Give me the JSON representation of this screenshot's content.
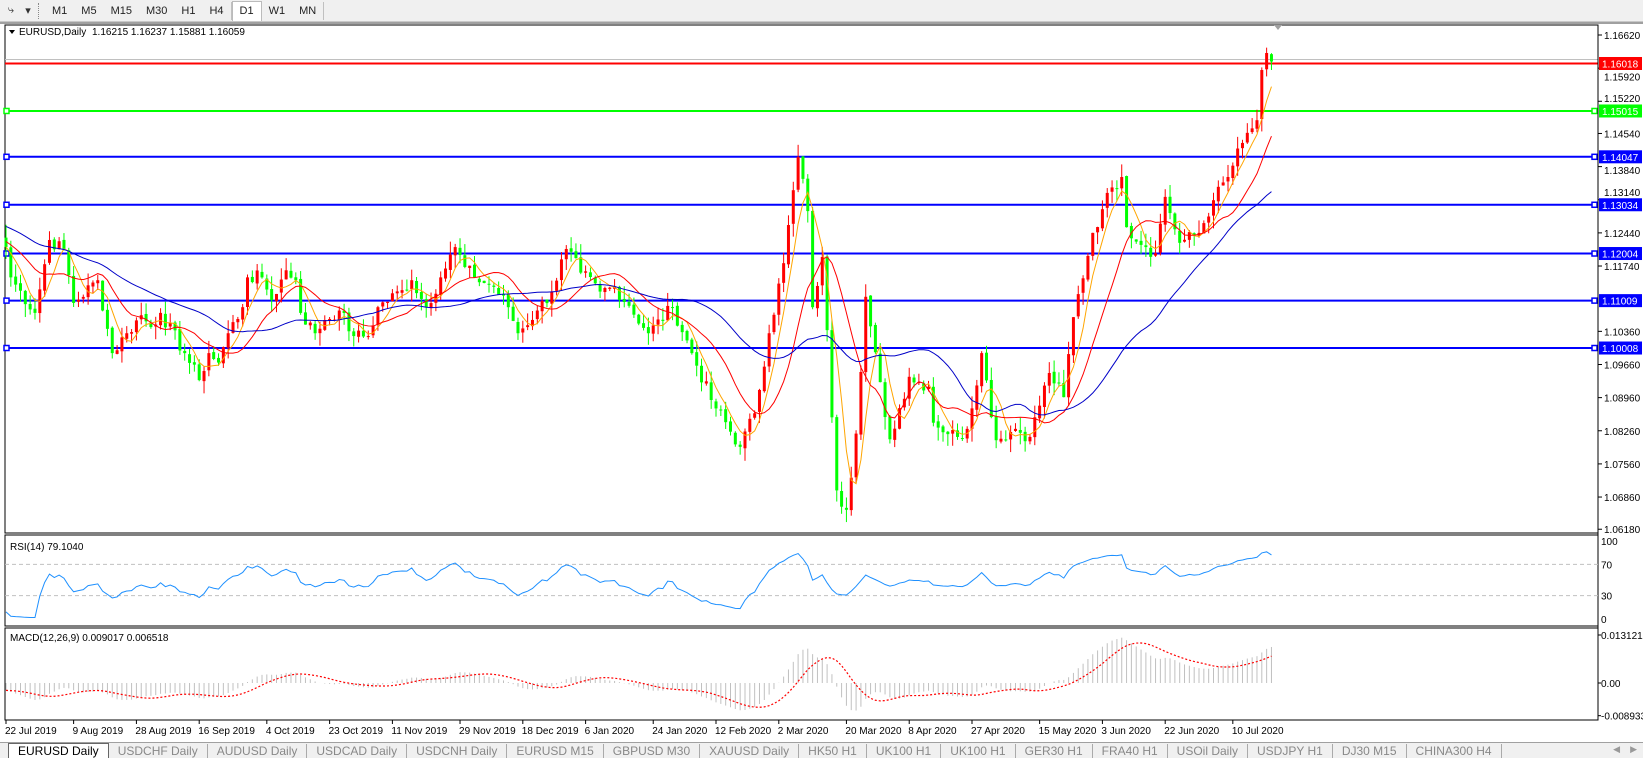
{
  "toolbar": {
    "timeframes": [
      "M1",
      "M5",
      "M15",
      "M30",
      "H1",
      "H4",
      "D1",
      "W1",
      "MN"
    ],
    "active_timeframe": "D1"
  },
  "chart": {
    "symbol_title": "EURUSD,Daily",
    "ohlc": "1.16215 1.16237 1.15881 1.16059",
    "last_bar": {
      "open": 1.16215,
      "high": 1.16237,
      "low": 1.15881,
      "close": 1.16059
    },
    "price_ticks": [
      "1.16620",
      "1.15920",
      "1.15220",
      "1.14540",
      "1.13840",
      "1.13140",
      "1.12440",
      "1.11740",
      "1.10360",
      "1.09660",
      "1.08960",
      "1.08260",
      "1.07560",
      "1.06860",
      "1.06180"
    ],
    "horizontal_lines": [
      {
        "value": "1.16018",
        "color": "#ff0000"
      },
      {
        "value": "1.15015",
        "color": "#00ff00"
      },
      {
        "value": "1.14047",
        "color": "#0000ff"
      },
      {
        "value": "1.13034",
        "color": "#0000ff"
      },
      {
        "value": "1.12004",
        "color": "#0000ff"
      },
      {
        "value": "1.11009",
        "color": "#0000ff"
      },
      {
        "value": "1.10008",
        "color": "#0000ff"
      }
    ],
    "candle_colors": {
      "bull": "#ff0000",
      "bear": "#00ff00"
    },
    "ma_colors": [
      "#ffa500",
      "#ff0000",
      "#0000c8"
    ],
    "close_path": [
      [
        "2019-07-22",
        1.1214
      ],
      [
        "2019-07-23",
        1.115
      ],
      [
        "2019-07-30",
        1.1075
      ],
      [
        "2019-08-02",
        1.1229
      ],
      [
        "2019-08-07",
        1.1208
      ],
      [
        "2019-08-09",
        1.1096
      ],
      [
        "2019-08-16",
        1.1144
      ],
      [
        "2019-08-21",
        1.099
      ],
      [
        "2019-08-26",
        1.1032
      ],
      [
        "2019-08-29",
        1.107
      ],
      [
        "2019-09-02",
        1.1045
      ],
      [
        "2019-09-04",
        1.1075
      ],
      [
        "2019-09-11",
        1.099
      ],
      [
        "2019-09-16",
        1.0933
      ],
      [
        "2019-09-18",
        1.099
      ],
      [
        "2019-09-20",
        1.097
      ],
      [
        "2019-09-24",
        1.1032
      ],
      [
        "2019-09-27",
        1.1087
      ],
      [
        "2019-09-30",
        1.115
      ],
      [
        "2019-10-03",
        1.115
      ],
      [
        "2019-10-07",
        1.1102
      ],
      [
        "2019-10-10",
        1.1165
      ],
      [
        "2019-10-14",
        1.1144
      ],
      [
        "2019-10-15",
        1.1075
      ],
      [
        "2019-10-18",
        1.1032
      ],
      [
        "2019-10-22",
        1.106
      ],
      [
        "2019-10-25",
        1.108
      ],
      [
        "2019-10-30",
        1.1026
      ],
      [
        "2019-11-04",
        1.1026
      ],
      [
        "2019-11-06",
        1.1087
      ],
      [
        "2019-11-13",
        1.1123
      ],
      [
        "2019-11-15",
        1.1144
      ],
      [
        "2019-11-20",
        1.1087
      ],
      [
        "2019-11-25",
        1.115
      ],
      [
        "2019-11-28",
        1.1214
      ],
      [
        "2019-12-02",
        1.1172
      ],
      [
        "2019-12-04",
        1.115
      ],
      [
        "2019-12-10",
        1.113
      ],
      [
        "2019-12-13",
        1.1087
      ],
      [
        "2019-12-17",
        1.1032
      ],
      [
        "2019-12-23",
        1.108
      ],
      [
        "2019-12-26",
        1.112
      ],
      [
        "2019-12-31",
        1.121
      ],
      [
        "2020-01-03",
        1.116
      ],
      [
        "2020-01-09",
        1.112
      ],
      [
        "2020-01-14",
        1.113
      ],
      [
        "2020-01-17",
        1.109
      ],
      [
        "2020-01-23",
        1.1032
      ],
      [
        "2020-01-30",
        1.1087
      ],
      [
        "2020-02-05",
        1.099
      ],
      [
        "2020-02-11",
        1.0891
      ],
      [
        "2020-02-19",
        1.0792
      ],
      [
        "2020-02-24",
        1.0863
      ],
      [
        "2020-02-27",
        1.1032
      ],
      [
        "2020-03-03",
        1.118
      ],
      [
        "2020-03-06",
        1.1404
      ],
      [
        "2020-03-10",
        1.129
      ],
      [
        "2020-03-11",
        1.1087
      ],
      [
        "2020-03-13",
        1.1193
      ],
      [
        "2020-03-18",
        1.07
      ],
      [
        "2020-03-20",
        1.0659
      ],
      [
        "2020-03-24",
        1.082
      ],
      [
        "2020-03-26",
        1.1109
      ],
      [
        "2020-04-01",
        1.0855
      ],
      [
        "2020-04-02",
        1.0808
      ],
      [
        "2020-04-08",
        1.094
      ],
      [
        "2020-04-14",
        1.0919
      ],
      [
        "2020-04-15",
        1.0843
      ],
      [
        "2020-04-22",
        1.0813
      ],
      [
        "2020-04-24",
        1.083
      ],
      [
        "2020-04-29",
        1.099
      ],
      [
        "2020-05-04",
        1.0806
      ],
      [
        "2020-05-08",
        1.083
      ],
      [
        "2020-05-13",
        1.0813
      ],
      [
        "2020-05-19",
        1.0948
      ],
      [
        "2020-05-22",
        1.0897
      ],
      [
        "2020-05-26",
        1.1066
      ],
      [
        "2020-06-01",
        1.1244
      ],
      [
        "2020-06-03",
        1.1294
      ],
      [
        "2020-06-05",
        1.134
      ],
      [
        "2020-06-09",
        1.1362
      ],
      [
        "2020-06-10",
        1.1256
      ],
      [
        "2020-06-16",
        1.1214
      ],
      [
        "2020-06-18",
        1.1201
      ],
      [
        "2020-06-22",
        1.132
      ],
      [
        "2020-06-25",
        1.1223
      ],
      [
        "2020-07-01",
        1.1244
      ],
      [
        "2020-07-06",
        1.1313
      ],
      [
        "2020-07-09",
        1.1362
      ],
      [
        "2020-07-14",
        1.1434
      ],
      [
        "2020-07-17",
        1.1482
      ],
      [
        "2020-07-20",
        1.1588
      ],
      [
        "2020-07-21",
        1.1624
      ],
      [
        "2020-07-22",
        1.16059
      ]
    ],
    "date_labels": [
      [
        "2019-07-22",
        "22 Jul 2019"
      ],
      [
        "2019-08-09",
        "9 Aug 2019"
      ],
      [
        "2019-08-28",
        "28 Aug 2019"
      ],
      [
        "2019-09-16",
        "16 Sep 2019"
      ],
      [
        "2019-10-04",
        "4 Oct 2019"
      ],
      [
        "2019-10-23",
        "23 Oct 2019"
      ],
      [
        "2019-11-11",
        "11 Nov 2019"
      ],
      [
        "2019-11-29",
        "29 Nov 2019"
      ],
      [
        "2019-12-18",
        "18 Dec 2019"
      ],
      [
        "2020-01-06",
        "6 Jan 2020"
      ],
      [
        "2020-01-24",
        "24 Jan 2020"
      ],
      [
        "2020-02-12",
        "12 Feb 2020"
      ],
      [
        "2020-03-02",
        "2 Mar 2020"
      ],
      [
        "2020-03-20",
        "20 Mar 2020"
      ],
      [
        "2020-04-08",
        "8 Apr 2020"
      ],
      [
        "2020-04-27",
        "27 Apr 2020"
      ],
      [
        "2020-05-15",
        "15 May 2020"
      ],
      [
        "2020-06-03",
        "3 Jun 2020"
      ],
      [
        "2020-06-22",
        "22 Jun 2020"
      ],
      [
        "2020-07-10",
        "10 Jul 2020"
      ]
    ]
  },
  "rsi": {
    "title": "RSI(14) 79.1040",
    "levels": [
      "100",
      "70",
      "30",
      "0"
    ],
    "color": "#1e90ff"
  },
  "macd": {
    "title": "MACD(12,26,9) 0.009017 0.006518",
    "ticks": [
      "0.013121",
      "0.00",
      "-0.008933"
    ],
    "histogram_color": "#c0c0c0",
    "signal_color": "#ff0000"
  },
  "tabs": [
    "EURUSD Daily",
    "USDCHF Daily",
    "AUDUSD Daily",
    "USDCAD Daily",
    "USDCNH Daily",
    "EURUSD M15",
    "GBPUSD M30",
    "XAUUSD Daily",
    "HK50 H1",
    "UK100 H1",
    "UK100 H1",
    "GER30 H1",
    "FRA40 H1",
    "USOil Daily",
    "USDJPY H1",
    "DJ30 M15",
    "CHINA300 H4"
  ],
  "active_tab": "EURUSD Daily"
}
